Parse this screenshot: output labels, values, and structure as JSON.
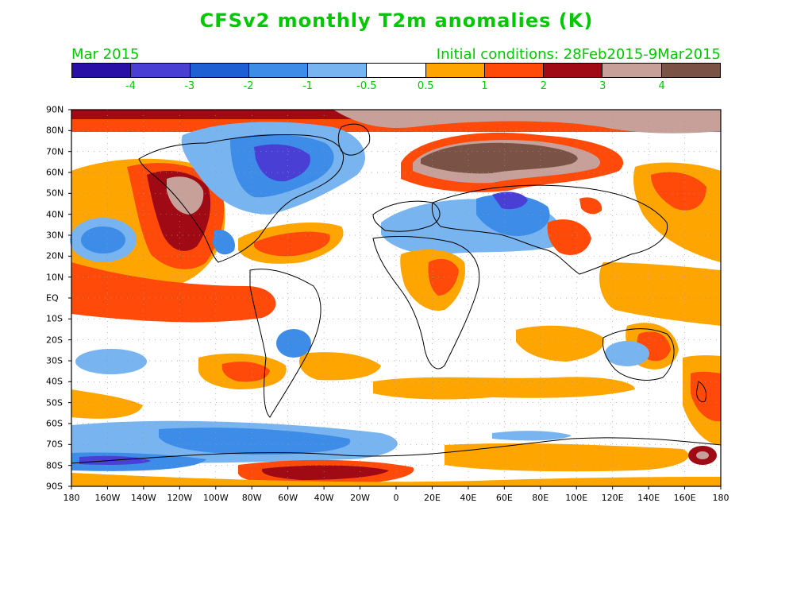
{
  "title": "CFSv2 monthly T2m anomalies (K)",
  "month": "Mar 2015",
  "initial_conditions": "Initial conditions: 28Feb2015-9Mar2015",
  "colorbar": {
    "colors": [
      "#2a0fa6",
      "#4a3fd4",
      "#1e5fd4",
      "#3c8ce8",
      "#78b4f0",
      "#ffffff",
      "#ffa500",
      "#ff4a0a",
      "#a00a14",
      "#c8a09a",
      "#7a5246"
    ],
    "labels": [
      "-4",
      "-3",
      "-2",
      "-1",
      "-0.5",
      "0.5",
      "1",
      "2",
      "3",
      "4"
    ]
  },
  "map": {
    "y_labels": [
      "90N",
      "80N",
      "70N",
      "60N",
      "50N",
      "40N",
      "30N",
      "20N",
      "10N",
      "EQ",
      "10S",
      "20S",
      "30S",
      "40S",
      "50S",
      "60S",
      "70S",
      "80S",
      "90S"
    ],
    "x_labels": [
      "180",
      "160W",
      "140W",
      "120W",
      "100W",
      "80W",
      "60W",
      "40W",
      "20W",
      "0",
      "20E",
      "40E",
      "60E",
      "80E",
      "100E",
      "120E",
      "140E",
      "160E",
      "180"
    ]
  }
}
